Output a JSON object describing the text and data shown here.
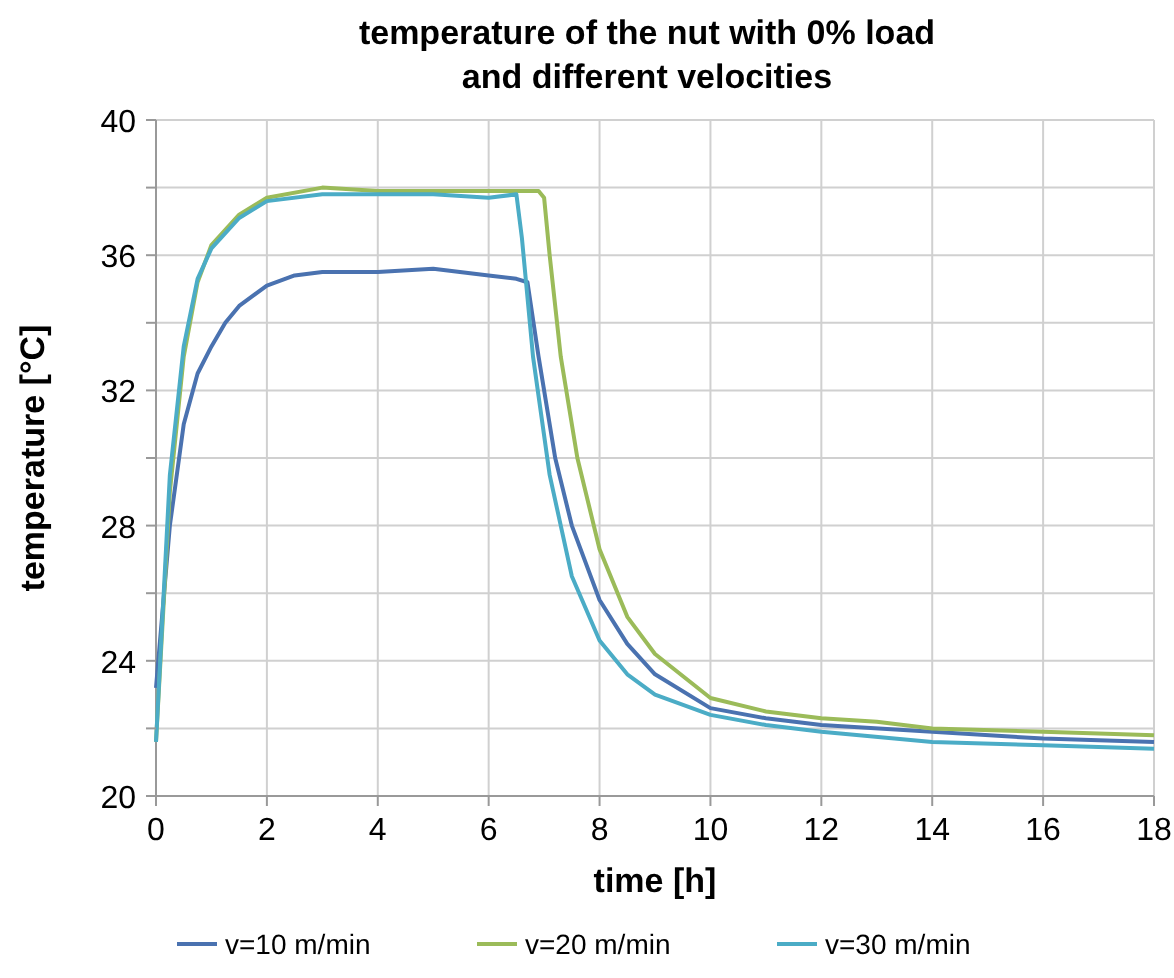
{
  "chart_data": {
    "type": "line",
    "title": "temperature of the nut with 0% load and different velocities",
    "xlabel": "time [h]",
    "ylabel": "temperature [°C]",
    "xlim": [
      0,
      18
    ],
    "xticks": [
      0,
      2,
      4,
      6,
      8,
      10,
      12,
      14,
      16,
      18
    ],
    "ylim": [
      20,
      40
    ],
    "yticks": [
      20,
      {
        "value": 22,
        "label": null
      },
      24,
      {
        "value": 26,
        "label": null
      },
      28,
      {
        "value": 30,
        "label": null
      },
      32,
      {
        "value": 34,
        "label": null
      },
      36,
      {
        "value": 38,
        "label": null
      },
      40
    ],
    "grid": true,
    "legend": "bottom",
    "marker": "none",
    "line_style": "solid",
    "series": [
      {
        "name": "v=10 m/min",
        "color": "#4a72b0",
        "x": [
          0,
          0.25,
          0.5,
          0.75,
          1,
          1.25,
          1.5,
          2,
          2.5,
          3,
          4,
          5,
          6,
          6.5,
          6.7,
          6.9,
          7.2,
          7.5,
          8,
          8.5,
          9,
          10,
          11,
          12,
          14,
          16,
          18
        ],
        "values": [
          23.2,
          28,
          31,
          32.5,
          33.3,
          34,
          34.5,
          35.1,
          35.4,
          35.5,
          35.5,
          35.6,
          35.4,
          35.3,
          35.2,
          33,
          30,
          28,
          25.8,
          24.5,
          23.6,
          22.6,
          22.3,
          22.1,
          21.9,
          21.7,
          21.6
        ]
      },
      {
        "name": "v=20 m/min",
        "color": "#9bbb59",
        "x": [
          0,
          0.25,
          0.5,
          0.75,
          1,
          1.5,
          2,
          3,
          4,
          5,
          6,
          6.9,
          7,
          7.1,
          7.3,
          7.6,
          8,
          8.5,
          9,
          10,
          11,
          12,
          13,
          14,
          16,
          18
        ],
        "values": [
          21.6,
          29,
          33,
          35.2,
          36.3,
          37.2,
          37.7,
          38,
          37.9,
          37.9,
          37.9,
          37.9,
          37.7,
          36,
          33,
          30,
          27.3,
          25.3,
          24.2,
          22.9,
          22.5,
          22.3,
          22.2,
          22,
          21.9,
          21.8
        ]
      },
      {
        "name": "v=30 m/min",
        "color": "#4bacc6",
        "x": [
          0,
          0.25,
          0.5,
          0.75,
          1,
          1.5,
          2,
          3,
          4,
          5,
          6,
          6.5,
          6.6,
          6.8,
          7.1,
          7.5,
          8,
          8.5,
          9,
          10,
          11,
          12,
          14,
          16,
          18
        ],
        "values": [
          21.6,
          29.5,
          33.3,
          35.3,
          36.2,
          37.1,
          37.6,
          37.8,
          37.8,
          37.8,
          37.7,
          37.8,
          36.5,
          33,
          29.5,
          26.5,
          24.6,
          23.6,
          23,
          22.4,
          22.1,
          21.9,
          21.6,
          21.5,
          21.4
        ]
      }
    ]
  }
}
